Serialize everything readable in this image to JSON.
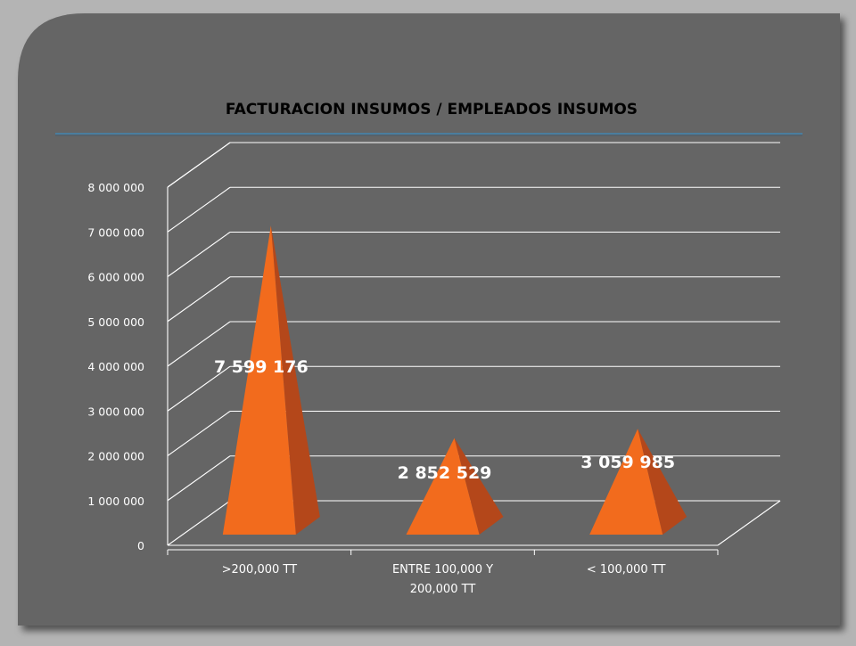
{
  "chart_data": {
    "type": "bar",
    "style": "3d-pyramid",
    "title": "FACTURACION INSUMOS / EMPLEADOS INSUMOS",
    "categories": [
      ">200,000 TT",
      "ENTRE 100,000 Y 200,000 TT",
      "< 100,000 TT"
    ],
    "category_lines": [
      [
        ">200,000 TT"
      ],
      [
        "ENTRE 100,000 Y",
        "200,000 TT"
      ],
      [
        "< 100,000 TT"
      ]
    ],
    "values": [
      7599176,
      2852529,
      3059985
    ],
    "data_labels": [
      "7 599 176",
      "2 852 529",
      "3 059 985"
    ],
    "ylim": [
      0,
      8000000
    ],
    "yticks": [
      0,
      1000000,
      2000000,
      3000000,
      4000000,
      5000000,
      6000000,
      7000000,
      8000000
    ],
    "ytick_labels": [
      "0",
      "1 000 000",
      "2 000 000",
      "3 000 000",
      "4 000 000",
      "5 000 000",
      "6 000 000",
      "7 000 000",
      "8 000 000"
    ],
    "xlabel": "",
    "ylabel": "",
    "grid": true,
    "legend": "none",
    "colors": {
      "pyramid_front": "#f26b1d",
      "pyramid_side": "#b4471a",
      "background": "#656565",
      "frame": "#b4b4b4",
      "text": "#ffffff",
      "title": "#000000",
      "title_rule": "#3b8cc0"
    }
  }
}
